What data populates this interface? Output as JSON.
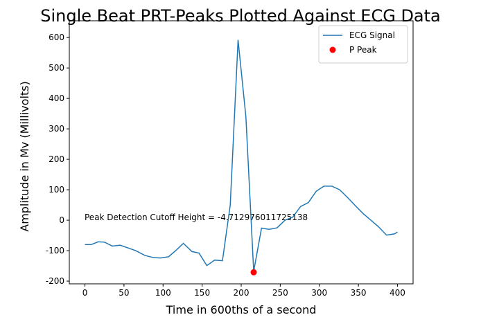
{
  "chart_data": {
    "type": "line",
    "title": "Single Beat PRT-Peaks Plotted Against ECG Data",
    "x_label": "Time in 600ths of a second",
    "y_label": "Amplitude in Mv (Millivolts)",
    "annotation": "Peak Detection Cutoff Height = -4.712976011725138",
    "x": [
      0,
      8,
      17,
      25,
      35,
      45,
      55,
      65,
      77,
      88,
      97,
      107,
      117,
      126,
      137,
      146,
      156,
      166,
      176,
      186,
      196,
      206,
      216,
      226,
      236,
      246,
      256,
      266,
      276,
      286,
      296,
      306,
      316,
      326,
      336,
      346,
      356,
      366,
      376,
      386,
      396,
      400
    ],
    "series": [
      {
        "name": "ECG Signal",
        "color": "#1f77b4",
        "type": "line",
        "values": [
          -80,
          -80,
          -71,
          -72,
          -85,
          -82,
          -91,
          -100,
          -116,
          -123,
          -124,
          -120,
          -98,
          -76,
          -103,
          -108,
          -149,
          -131,
          -133,
          50,
          592,
          340,
          -168,
          -26,
          -30,
          -25,
          0,
          10,
          45,
          58,
          95,
          112,
          112,
          100,
          75,
          48,
          22,
          0,
          -22,
          -49,
          -45,
          -39
        ]
      },
      {
        "name": "P Peak",
        "color": "#ff0000",
        "type": "scatter",
        "x": [
          216
        ],
        "values": [
          -171
        ]
      }
    ],
    "xlim": [
      -20,
      420
    ],
    "ylim": [
      -209,
      655
    ],
    "xticks": [
      0,
      50,
      100,
      150,
      200,
      250,
      300,
      350,
      400
    ],
    "yticks": [
      -200,
      -100,
      0,
      100,
      200,
      300,
      400,
      500,
      600
    ],
    "legend": "upper right"
  }
}
